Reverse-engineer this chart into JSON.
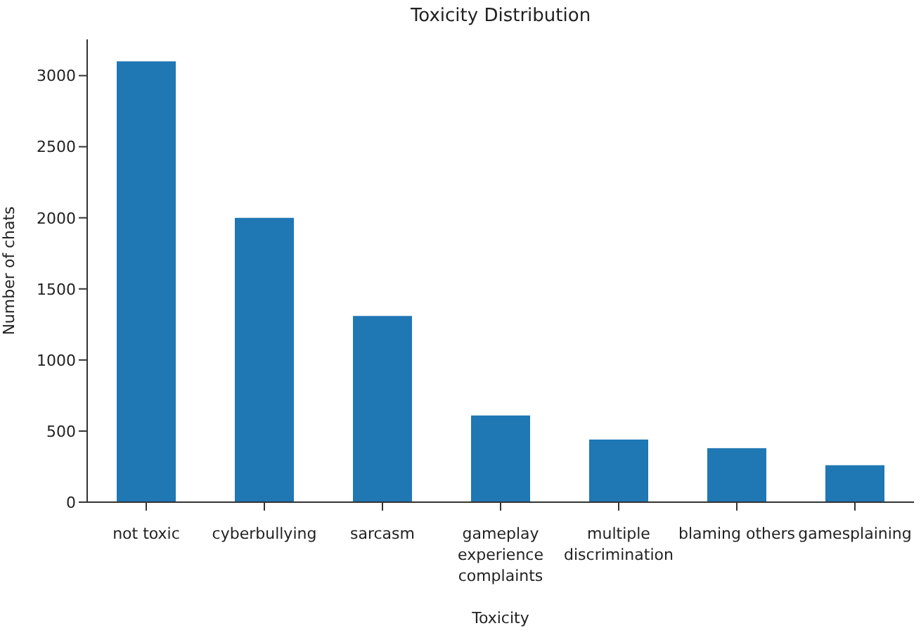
{
  "chart_data": {
    "type": "bar",
    "title": "Toxicity Distribution",
    "xlabel": "Toxicity",
    "ylabel": "Number of chats",
    "categories": [
      "not toxic",
      "cyberbullying",
      "sarcasm",
      "gameplay experience complaints",
      "multiple discrimination",
      "blaming others",
      "gamesplaining"
    ],
    "values": [
      3100,
      2000,
      1310,
      610,
      440,
      380,
      260
    ],
    "color": "#1f77b4",
    "ylim": [
      0,
      3255
    ],
    "yticks": [
      0,
      500,
      1000,
      1500,
      2000,
      2500,
      3000
    ],
    "grid": false,
    "legend": false
  }
}
